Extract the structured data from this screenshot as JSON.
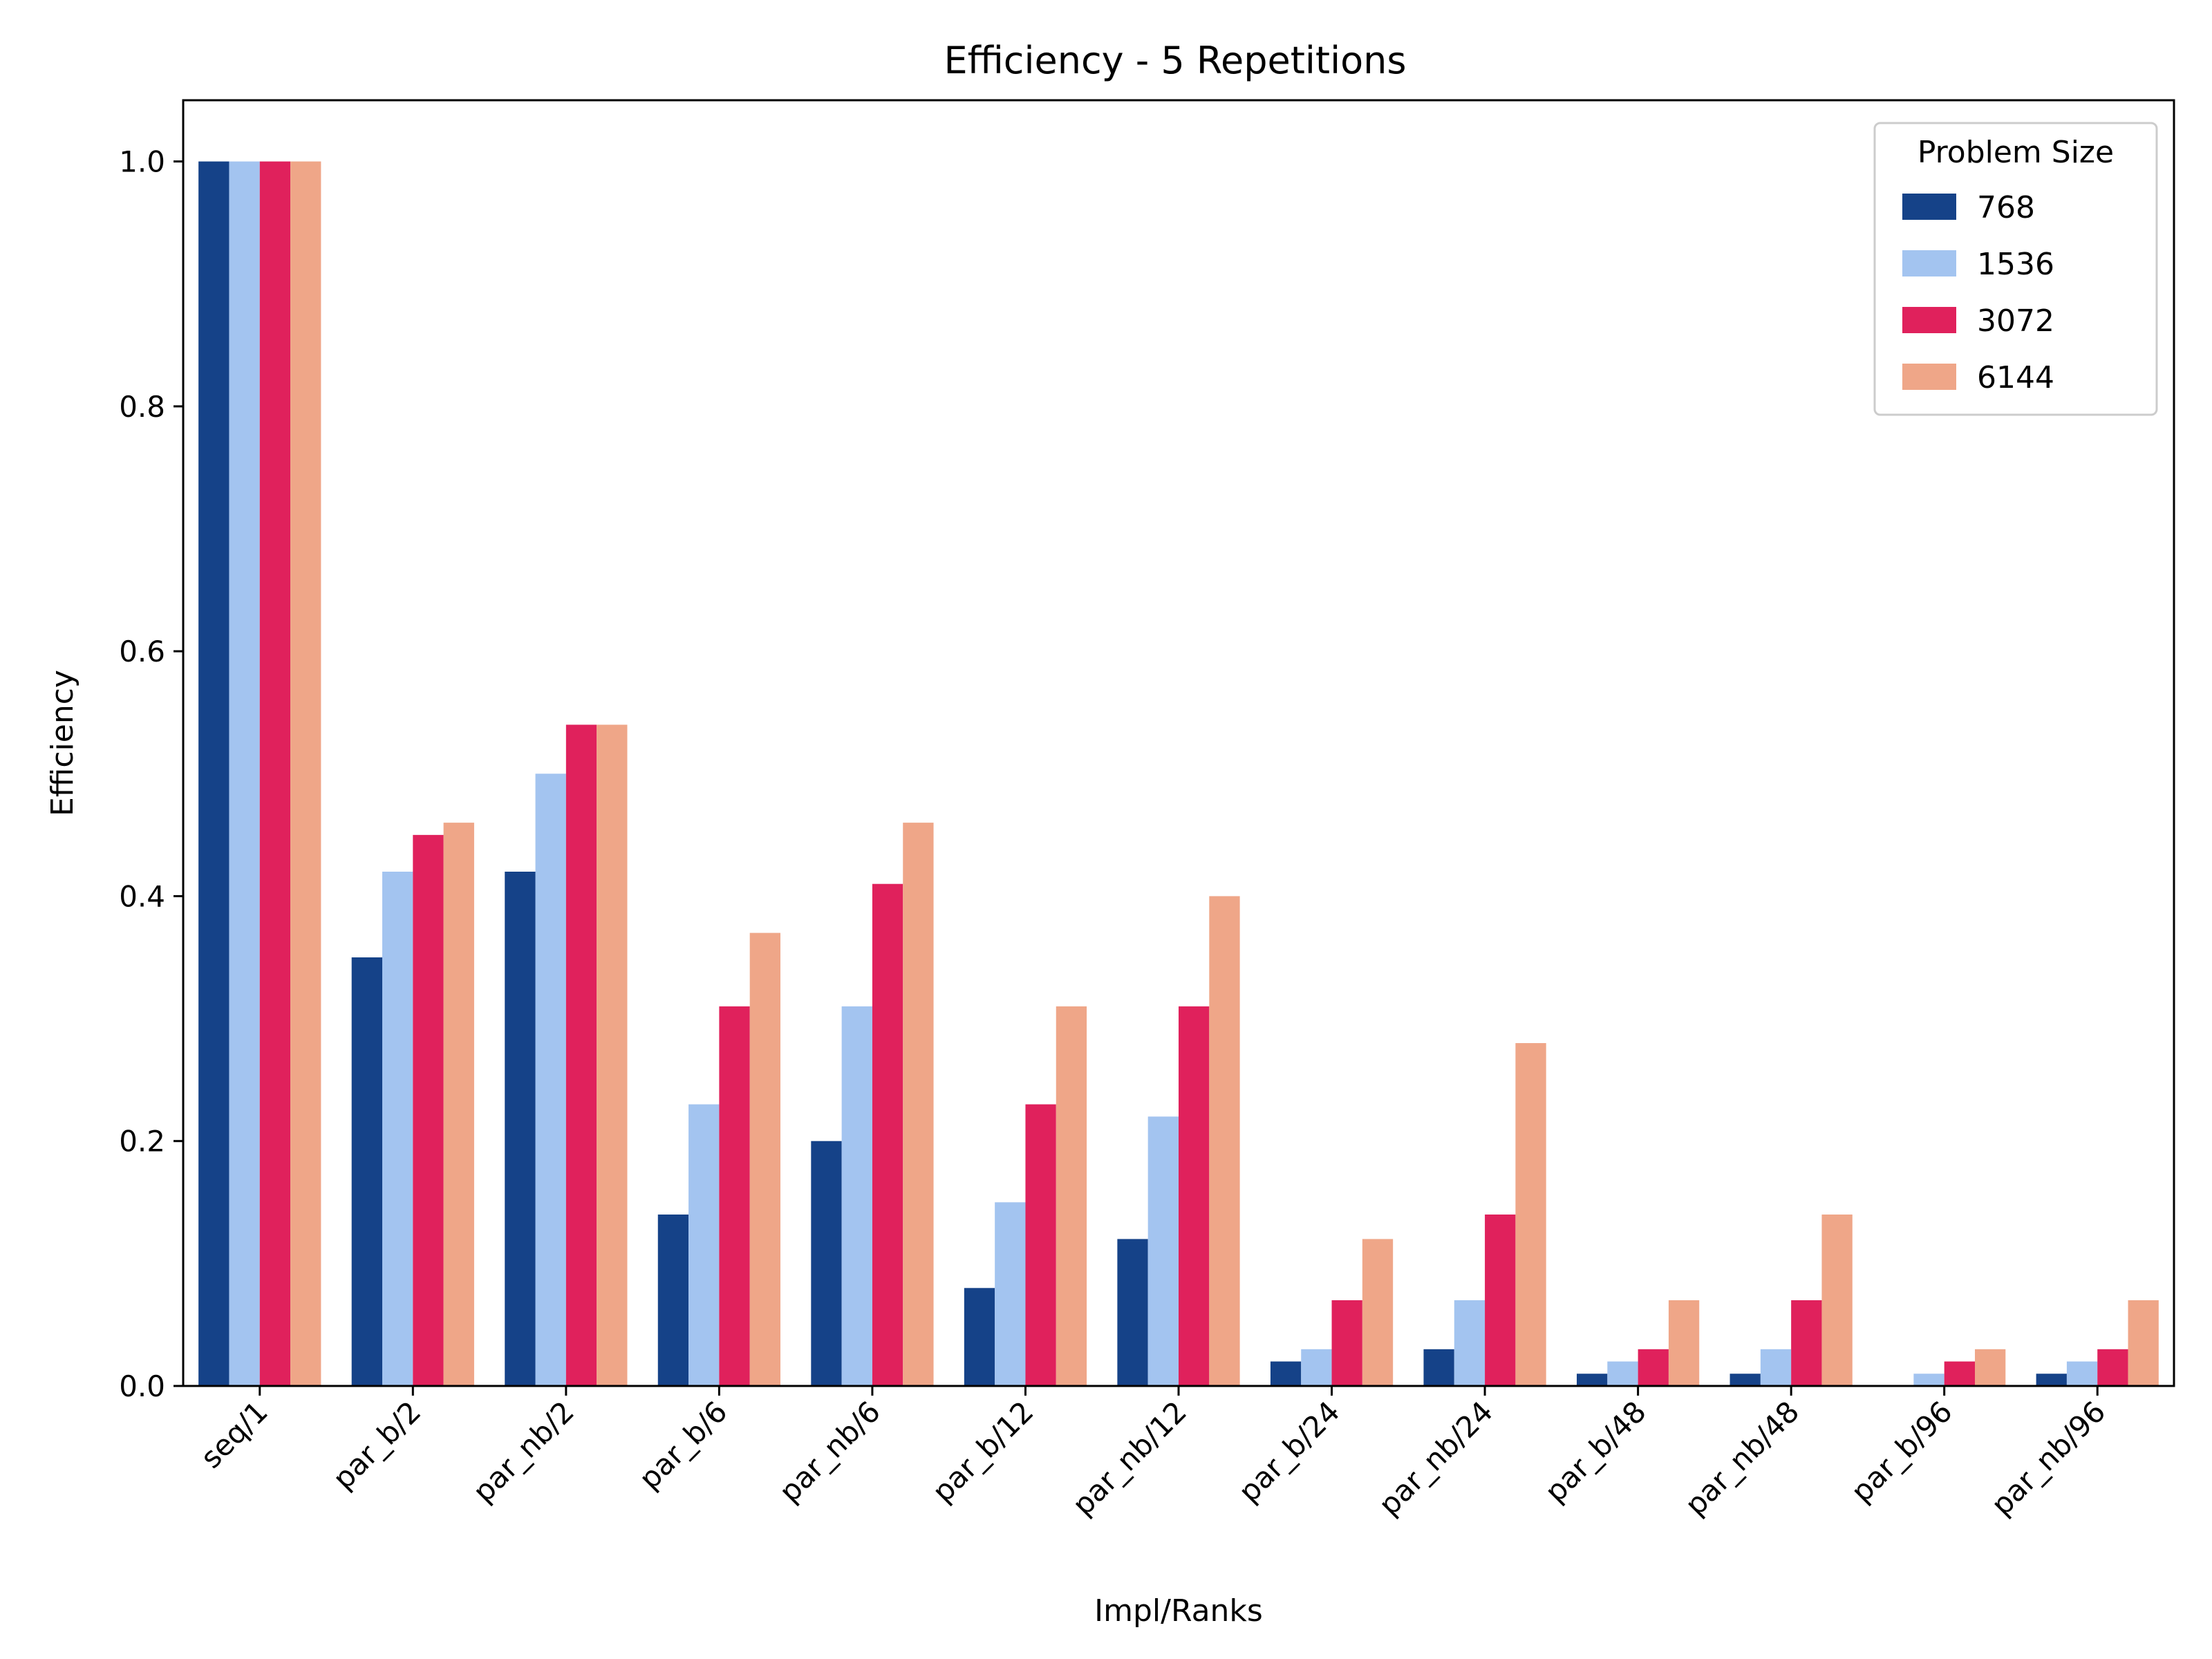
{
  "chart_data": {
    "type": "bar",
    "title": "Efficiency - 5 Repetitions",
    "xlabel": "Impl/Ranks",
    "ylabel": "Efficiency",
    "ylim": [
      0,
      1.05
    ],
    "yticks": [
      "0.0",
      "0.2",
      "0.4",
      "0.6",
      "0.8",
      "1.0"
    ],
    "grid": false,
    "legend": {
      "title": "Problem Size",
      "placement": "top-right"
    },
    "categories": [
      "seq/1",
      "par_b/2",
      "par_nb/2",
      "par_b/6",
      "par_nb/6",
      "par_b/12",
      "par_nb/12",
      "par_b/24",
      "par_nb/24",
      "par_b/48",
      "par_nb/48",
      "par_b/96",
      "par_nb/96"
    ],
    "series": [
      {
        "name": "768",
        "color": "#154288",
        "values": [
          1.0,
          0.35,
          0.42,
          0.14,
          0.2,
          0.08,
          0.12,
          0.02,
          0.03,
          0.01,
          0.01,
          0.0,
          0.01
        ]
      },
      {
        "name": "1536",
        "color": "#a3c4f0",
        "values": [
          1.0,
          0.42,
          0.5,
          0.23,
          0.31,
          0.15,
          0.22,
          0.03,
          0.07,
          0.02,
          0.03,
          0.01,
          0.02
        ]
      },
      {
        "name": "3072",
        "color": "#e0215c",
        "values": [
          1.0,
          0.45,
          0.54,
          0.31,
          0.41,
          0.23,
          0.31,
          0.07,
          0.14,
          0.03,
          0.07,
          0.02,
          0.03
        ]
      },
      {
        "name": "6144",
        "color": "#efa688",
        "values": [
          1.0,
          0.46,
          0.54,
          0.37,
          0.46,
          0.31,
          0.4,
          0.12,
          0.28,
          0.07,
          0.14,
          0.03,
          0.07
        ]
      }
    ]
  }
}
